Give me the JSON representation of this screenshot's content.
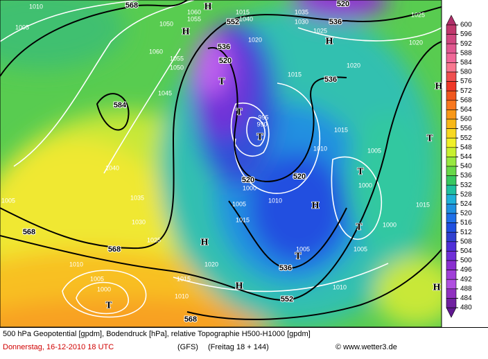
{
  "map": {
    "labels": [
      "568",
      "1010",
      "1005",
      "1050",
      "1060",
      "1055",
      "552",
      "1015",
      "1040",
      "1035",
      "1030",
      "520",
      "536",
      "1025",
      "1025",
      "1020",
      "H",
      "H",
      "H",
      "H",
      "H",
      "H",
      "H",
      "H",
      "1060",
      "1055",
      "1050",
      "1045",
      "536",
      "520",
      "T",
      "1020",
      "1015",
      "536",
      "1020",
      "584",
      "T",
      "995",
      "990",
      "T",
      "1015",
      "1010",
      "1005",
      "T",
      "T",
      "1000",
      "520",
      "520",
      "1000",
      "1040",
      "1035",
      "1030",
      "1025",
      "1005",
      "568",
      "568",
      "1005",
      "1010",
      "1015",
      "T",
      "1000",
      "1005",
      "1015",
      "1005",
      "T",
      "536",
      "1010",
      "1020",
      "1015",
      "1005",
      "1000",
      "T",
      "1010",
      "552",
      "1010",
      "568"
    ]
  },
  "colorbar": {
    "ticks": [
      600,
      596,
      592,
      588,
      584,
      580,
      576,
      572,
      568,
      564,
      560,
      556,
      552,
      548,
      544,
      540,
      536,
      532,
      528,
      524,
      520,
      516,
      512,
      508,
      504,
      500,
      496,
      492,
      488,
      484,
      480
    ],
    "colors": [
      "#c0386c",
      "#d04880",
      "#e05890",
      "#f06898",
      "#f87890",
      "#f05050",
      "#f03828",
      "#f05820",
      "#f87820",
      "#f89818",
      "#f8b818",
      "#f8d820",
      "#f0f028",
      "#c8f030",
      "#98e840",
      "#68d848",
      "#38c860",
      "#20c0a0",
      "#20b0d8",
      "#2090e0",
      "#2070e8",
      "#2050e0",
      "#3040d0",
      "#5030d8",
      "#7030d8",
      "#8a30d0",
      "#a040d8",
      "#b050e0",
      "#9030c0",
      "#7020a0"
    ],
    "top_color": "#b0306a",
    "bottom_color": "#601890"
  },
  "caption": {
    "title": "500 hPa Geopotential [gpdm], Bodendruck [hPa], relative Topographie H500-H1000 [gpdm]",
    "date": "Donnerstag, 16-12-2010  18 UTC",
    "model": "(GFS)",
    "run": "(Freitag 18 + 144)",
    "source": "© www.wetter3.de"
  }
}
